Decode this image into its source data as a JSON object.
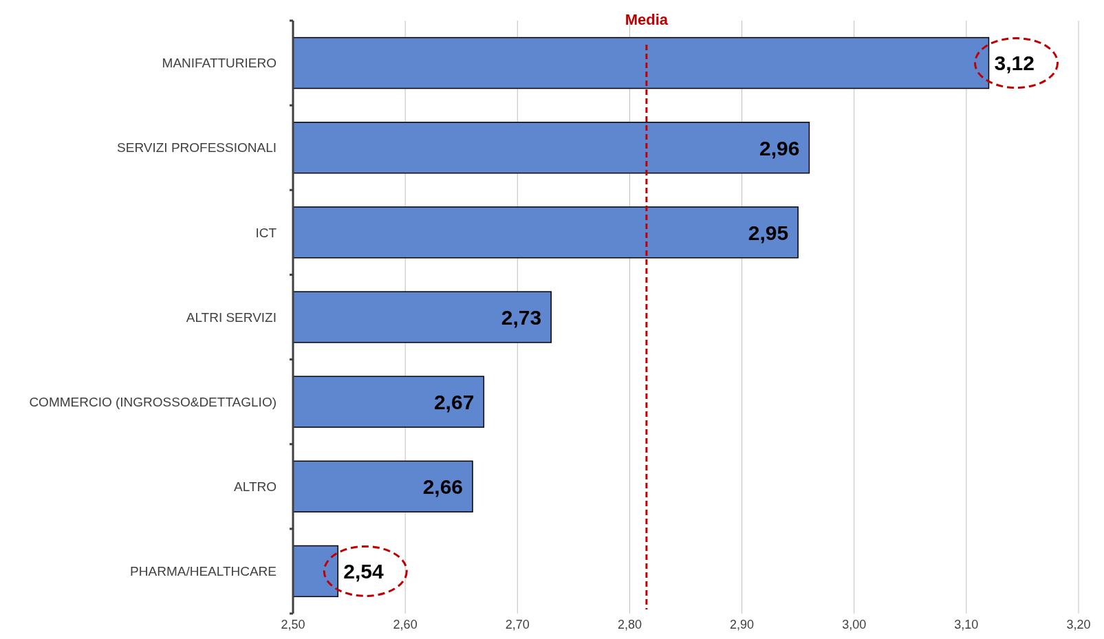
{
  "chart_data": {
    "type": "bar",
    "orientation": "horizontal",
    "categories": [
      "MANIFATTURIERO",
      "SERVIZI PROFESSIONALI",
      "ICT",
      "ALTRI SERVIZI",
      "COMMERCIO (INGROSSO&DETTAGLIO)",
      "ALTRO",
      "PHARMA/HEALTHCARE"
    ],
    "values": [
      3.12,
      2.96,
      2.95,
      2.73,
      2.67,
      2.66,
      2.54
    ],
    "value_labels": [
      "3,12",
      "2,96",
      "2,95",
      "2,73",
      "2,67",
      "2,66",
      "2,54"
    ],
    "color": "#5f87d0",
    "xlim": [
      2.5,
      3.2
    ],
    "xticks": [
      {
        "value": 2.5,
        "label": "2,50"
      },
      {
        "value": 2.6,
        "label": "2,60"
      },
      {
        "value": 2.7,
        "label": "2,70"
      },
      {
        "value": 2.8,
        "label": "2,80"
      },
      {
        "value": 2.9,
        "label": "2,90"
      },
      {
        "value": 3.0,
        "label": "3,00"
      },
      {
        "value": 3.1,
        "label": "3,10"
      },
      {
        "value": 3.2,
        "label": "3,20"
      }
    ],
    "grid": "x",
    "ref_lines": [
      {
        "axis": "x",
        "value": 2.815,
        "label": "Media",
        "color": "#c00000",
        "line_style": "dashed"
      }
    ]
  }
}
